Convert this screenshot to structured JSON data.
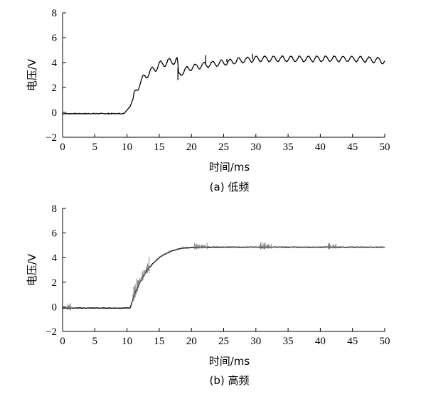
{
  "chart_data": [
    {
      "type": "line",
      "caption": "(a) 低频",
      "xlabel": "时间/ms",
      "ylabel": "电压/V",
      "xlim": [
        0,
        50
      ],
      "ylim": [
        -2,
        8
      ],
      "xticks": [
        0,
        5,
        10,
        15,
        20,
        25,
        30,
        35,
        40,
        45,
        50
      ],
      "yticks": [
        -2,
        0,
        2,
        4,
        6,
        8
      ],
      "grid": false,
      "series": [
        {
          "x": [
            0,
            9.5,
            10,
            10.5,
            11,
            11.5,
            12,
            13,
            14,
            15,
            16,
            17,
            17.8,
            18,
            19,
            20,
            22,
            25,
            28,
            30,
            35,
            40,
            45,
            49,
            50
          ],
          "y": [
            -0.1,
            -0.1,
            0.2,
            0.5,
            1.2,
            1.8,
            2.4,
            3.0,
            3.4,
            3.8,
            4.0,
            4.1,
            4.2,
            3.0,
            3.4,
            3.6,
            3.8,
            4.0,
            4.2,
            4.3,
            4.3,
            4.3,
            4.3,
            4.2,
            4.1
          ]
        }
      ]
    },
    {
      "type": "line",
      "caption": "(b) 高频",
      "xlabel": "时间/ms",
      "ylabel": "电压/V",
      "xlim": [
        0,
        50
      ],
      "ylim": [
        -2,
        8
      ],
      "xticks": [
        0,
        5,
        10,
        15,
        20,
        25,
        30,
        35,
        40,
        45,
        50
      ],
      "yticks": [
        -2,
        0,
        2,
        4,
        6,
        8
      ],
      "grid": false,
      "series": [
        {
          "x": [
            0,
            10.5,
            11,
            12,
            13,
            14,
            15,
            16,
            17,
            18,
            19,
            20,
            22,
            25,
            30,
            35,
            40,
            45,
            50
          ],
          "y": [
            -0.1,
            -0.1,
            0.8,
            2.0,
            2.9,
            3.5,
            4.0,
            4.3,
            4.55,
            4.7,
            4.78,
            4.82,
            4.85,
            4.85,
            4.85,
            4.85,
            4.85,
            4.85,
            4.85
          ]
        }
      ]
    }
  ]
}
